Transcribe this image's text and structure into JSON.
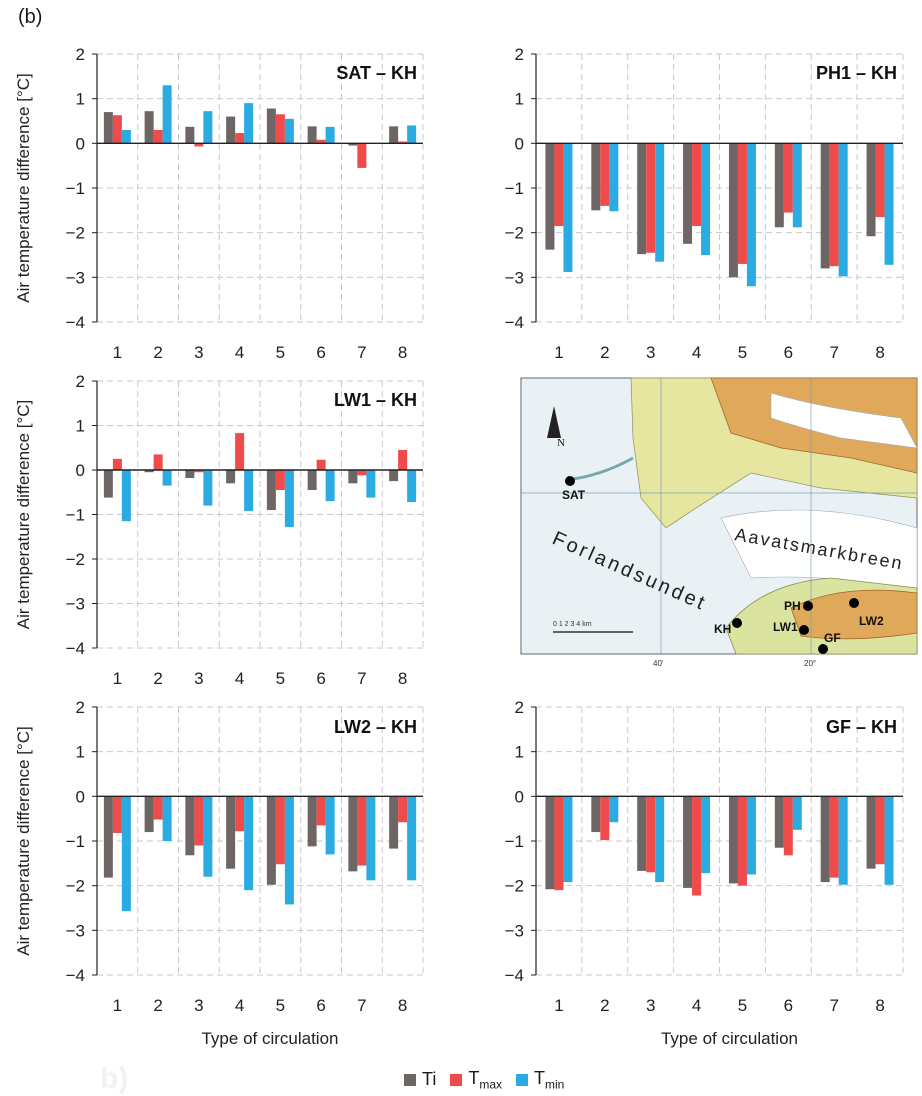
{
  "figure_label": "(b)",
  "ghost_label": "b)",
  "ylabel": "Air temperature difference [°C]",
  "xlabel": "Type of circulation",
  "colors": {
    "Ti": "#6d6665",
    "Tmax": "#ef4b4b",
    "Tmin": "#2aabe2",
    "grid": "#c9c9c9",
    "axis": "#222222"
  },
  "legend": [
    {
      "key": "Ti",
      "text": "Ti",
      "sub": ""
    },
    {
      "key": "Tmax",
      "text": "T",
      "sub": "max"
    },
    {
      "key": "Tmin",
      "text": "T",
      "sub": "min"
    }
  ],
  "map": {
    "labels": {
      "sea": "Forlandsundet",
      "glacier": "Aavatsmarkbreen",
      "SAT": "SAT",
      "KH": "KH",
      "PH": "PH",
      "LW1": "LW1",
      "LW2": "LW2",
      "GF": "GF",
      "north": "N",
      "lon1": "40'",
      "lon2": "20°",
      "scale": "0 1 2 3 4 km"
    }
  },
  "chart_data": [
    {
      "type": "bar",
      "title": "SAT – KH",
      "categories": [
        "1",
        "2",
        "3",
        "4",
        "5",
        "6",
        "7",
        "8"
      ],
      "ylim": [
        -4,
        2
      ],
      "yticks": [
        "2",
        "1",
        "0",
        "−1",
        "−2",
        "−3",
        "−4"
      ],
      "series": [
        {
          "name": "Ti",
          "values": [
            0.7,
            0.72,
            0.37,
            0.6,
            0.78,
            0.38,
            -0.05,
            0.38
          ]
        },
        {
          "name": "Tmax",
          "values": [
            0.63,
            0.3,
            -0.07,
            0.23,
            0.65,
            0.08,
            -0.55,
            0.04
          ]
        },
        {
          "name": "Tmin",
          "values": [
            0.3,
            1.3,
            0.72,
            0.9,
            0.55,
            0.37,
            0.0,
            0.4
          ]
        }
      ]
    },
    {
      "type": "bar",
      "title": "PH1 – KH",
      "categories": [
        "1",
        "2",
        "3",
        "4",
        "5",
        "6",
        "7",
        "8"
      ],
      "ylim": [
        -4,
        2
      ],
      "yticks": [
        "2",
        "1",
        "0",
        "−1",
        "−2",
        "−3",
        "−4"
      ],
      "series": [
        {
          "name": "Ti",
          "values": [
            -2.38,
            -1.5,
            -2.48,
            -2.25,
            -3.0,
            -1.88,
            -2.8,
            -2.08
          ]
        },
        {
          "name": "Tmax",
          "values": [
            -1.85,
            -1.4,
            -2.45,
            -1.85,
            -2.7,
            -1.55,
            -2.75,
            -1.65
          ]
        },
        {
          "name": "Tmin",
          "values": [
            -2.88,
            -1.52,
            -2.65,
            -2.5,
            -3.2,
            -1.88,
            -2.98,
            -2.72
          ]
        }
      ]
    },
    {
      "type": "bar",
      "title": "LW1 – KH",
      "categories": [
        "1",
        "2",
        "3",
        "4",
        "5",
        "6",
        "7",
        "8"
      ],
      "ylim": [
        -4,
        2
      ],
      "yticks": [
        "2",
        "1",
        "0",
        "−1",
        "−2",
        "−3",
        "−4"
      ],
      "series": [
        {
          "name": "Ti",
          "values": [
            -0.62,
            -0.05,
            -0.18,
            -0.3,
            -0.9,
            -0.45,
            -0.3,
            -0.25
          ]
        },
        {
          "name": "Tmax",
          "values": [
            0.25,
            0.35,
            -0.05,
            0.83,
            -0.45,
            0.23,
            -0.12,
            0.45
          ]
        },
        {
          "name": "Tmin",
          "values": [
            -1.15,
            -0.35,
            -0.8,
            -0.92,
            -1.28,
            -0.7,
            -0.62,
            -0.72
          ]
        }
      ]
    },
    {
      "type": "bar",
      "title": "LW2 – KH",
      "categories": [
        "1",
        "2",
        "3",
        "4",
        "5",
        "6",
        "7",
        "8"
      ],
      "ylim": [
        -4,
        2
      ],
      "yticks": [
        "2",
        "1",
        "0",
        "−1",
        "−2",
        "−3",
        "−4"
      ],
      "series": [
        {
          "name": "Ti",
          "values": [
            -1.82,
            -0.8,
            -1.32,
            -1.62,
            -1.98,
            -1.12,
            -1.68,
            -1.17
          ]
        },
        {
          "name": "Tmax",
          "values": [
            -0.82,
            -0.52,
            -1.1,
            -0.78,
            -1.52,
            -0.65,
            -1.55,
            -0.58
          ]
        },
        {
          "name": "Tmin",
          "values": [
            -2.57,
            -1.0,
            -1.8,
            -2.1,
            -2.42,
            -1.3,
            -1.88,
            -1.88
          ]
        }
      ]
    },
    {
      "type": "bar",
      "title": "GF – KH",
      "categories": [
        "1",
        "2",
        "3",
        "4",
        "5",
        "6",
        "7",
        "8"
      ],
      "ylim": [
        -4,
        2
      ],
      "yticks": [
        "2",
        "1",
        "0",
        "−1",
        "−2",
        "−3",
        "−4"
      ],
      "series": [
        {
          "name": "Ti",
          "values": [
            -2.08,
            -0.8,
            -1.67,
            -2.05,
            -1.95,
            -1.15,
            -1.92,
            -1.62
          ]
        },
        {
          "name": "Tmax",
          "values": [
            -2.1,
            -0.98,
            -1.7,
            -2.22,
            -2.0,
            -1.32,
            -1.82,
            -1.52
          ]
        },
        {
          "name": "Tmin",
          "values": [
            -1.92,
            -0.58,
            -1.92,
            -1.72,
            -1.75,
            -0.75,
            -1.98,
            -1.98
          ]
        }
      ]
    }
  ]
}
